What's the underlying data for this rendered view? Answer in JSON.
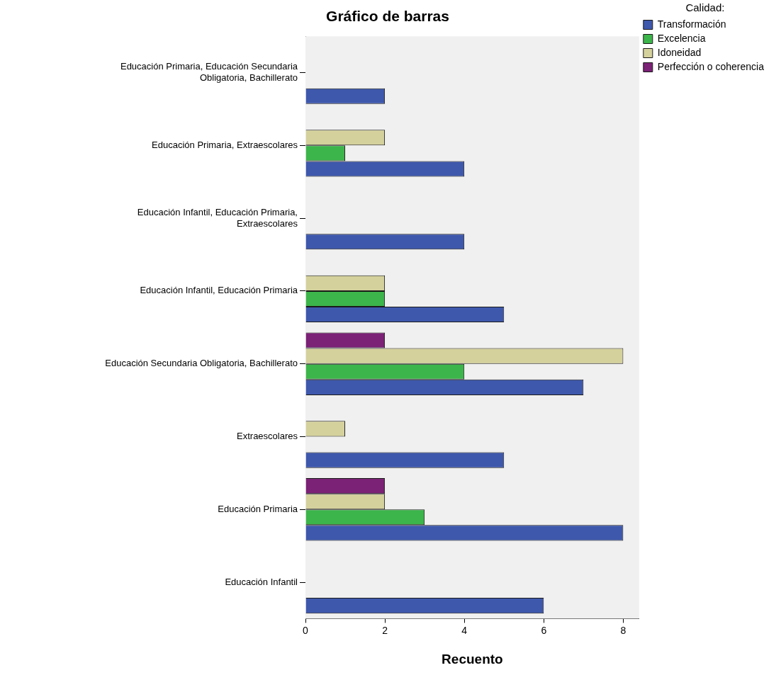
{
  "chart_data": {
    "type": "bar",
    "orientation": "horizontal",
    "title": "Gráfico de barras",
    "xlabel": "Recuento",
    "legend_title": "Calidad:",
    "legend": "top right",
    "grid": false,
    "categories": [
      "Educación Primaria, Educación Secundaria Obligatoria, Bachillerato",
      "Educación Primaria, Extraescolares",
      "Educación Infantil, Educación Primaria, Extraescolares",
      "Educación Infantil, Educación Primaria",
      "Educación Secundaria Obligatoria, Bachillerato",
      "Extraescolares",
      "Educación Primaria",
      "Educación Infantil"
    ],
    "xlim": [
      0,
      8.4
    ],
    "xticks": [
      0,
      2,
      4,
      6,
      8
    ],
    "series": [
      {
        "name": "Transformación",
        "color": "#3e58ac",
        "values": [
          2,
          4,
          4,
          5,
          7,
          5,
          8,
          6
        ]
      },
      {
        "name": "Excelencia",
        "color": "#3cb54a",
        "values": [
          null,
          1,
          null,
          2,
          4,
          null,
          3,
          null
        ]
      },
      {
        "name": "Idoneidad",
        "color": "#d5d19c",
        "values": [
          null,
          2,
          null,
          2,
          8,
          1,
          2,
          null
        ]
      },
      {
        "name": "Perfección o coherencia",
        "color": "#7b2176",
        "values": [
          null,
          null,
          null,
          null,
          2,
          null,
          2,
          null
        ]
      }
    ]
  }
}
